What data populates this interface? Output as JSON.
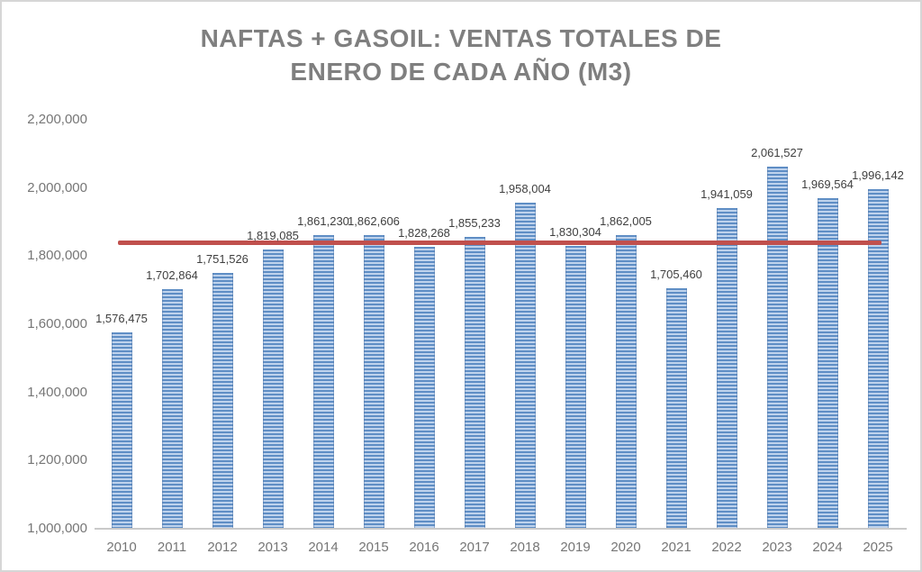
{
  "window": {
    "background": "#ffffff",
    "border_color": "#d6d6d6"
  },
  "chart_data": {
    "type": "bar",
    "title": "NAFTAS + GASOIL: VENTAS TOTALES DE ENERO DE CADA AÑO (M3)",
    "title_lines": [
      "NAFTAS + GASOIL: VENTAS TOTALES DE",
      "ENERO DE CADA AÑO (M3)"
    ],
    "xlabel": "",
    "ylabel": "",
    "categories": [
      "2010",
      "2011",
      "2012",
      "2013",
      "2014",
      "2015",
      "2016",
      "2017",
      "2018",
      "2019",
      "2020",
      "2021",
      "2022",
      "2023",
      "2024",
      "2025"
    ],
    "values": [
      1576475,
      1702864,
      1751526,
      1819085,
      1861230,
      1862606,
      1828268,
      1855233,
      1958004,
      1830304,
      1862005,
      1705460,
      1941059,
      2061527,
      1969564,
      1996142
    ],
    "data_labels": [
      "1,576,475",
      "1,702,864",
      "1,751,526",
      "1,819,085",
      "1,861,230",
      "1,862,606",
      "1,828,268",
      "1,855,233",
      "1,958,004",
      "1,830,304",
      "1,862,005",
      "1,705,460",
      "1,941,059",
      "2,061,527",
      "1,969,564",
      "1,996,142"
    ],
    "ylim": [
      1000000,
      2200000
    ],
    "y_ticks": [
      2200000,
      2000000,
      1800000,
      1600000,
      1400000,
      1200000,
      1000000
    ],
    "y_tick_labels": [
      "2,200,000",
      "2,000,000",
      "1,800,000",
      "1,600,000",
      "1,400,000",
      "1,200,000",
      "1,000,000"
    ],
    "grid": false,
    "legend": false,
    "reference_line": {
      "value": 1840000,
      "from_category": "2010",
      "to_category": "2025",
      "color": "#c0504d"
    }
  },
  "colors": {
    "title_text": "#7f7f7f",
    "axis_text": "#767676",
    "data_label_text": "#3f3f3f",
    "bar_stripe_dark": "#5f8ec5",
    "bar_stripe_light": "#b7cdea",
    "reference_line": "#c0504d",
    "axis_line": "#c9c9c9"
  }
}
